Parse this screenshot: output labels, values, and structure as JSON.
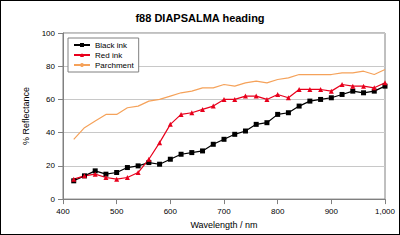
{
  "chart_data": {
    "type": "line",
    "title": "f88 DIAPSALMA heading",
    "x_label": "Wavelength / nm",
    "y_label": "% Reflectance",
    "x": [
      420,
      440,
      460,
      480,
      500,
      520,
      540,
      560,
      580,
      600,
      620,
      640,
      660,
      680,
      700,
      720,
      740,
      760,
      780,
      800,
      820,
      840,
      860,
      880,
      900,
      920,
      940,
      960,
      980,
      1000
    ],
    "series": [
      {
        "name": "Black ink",
        "color": "#000000",
        "marker": "square",
        "values": [
          11,
          14,
          17,
          15,
          16,
          19,
          20,
          22,
          21,
          24,
          27,
          28,
          29,
          33,
          36,
          39,
          41,
          45,
          46,
          51,
          52,
          56,
          59,
          60,
          61,
          63,
          65,
          64,
          65,
          68
        ]
      },
      {
        "name": "Red ink",
        "color": "#e8001c",
        "marker": "triangle",
        "values": [
          12,
          14,
          15,
          13,
          12,
          13,
          16,
          24,
          34,
          45,
          51,
          52,
          54,
          56,
          60,
          60,
          62,
          62,
          60,
          63,
          61,
          66,
          66,
          66,
          65,
          69,
          68,
          68,
          67,
          70
        ]
      },
      {
        "name": "Parchment",
        "color": "#f5a25a",
        "marker": "none",
        "values": [
          36,
          43,
          47,
          51,
          51,
          55,
          56,
          59,
          60,
          62,
          64,
          65,
          67,
          67,
          69,
          68,
          70,
          71,
          70,
          72,
          73,
          75,
          75,
          75,
          75,
          76,
          76,
          77,
          75,
          78
        ]
      }
    ],
    "xlim": [
      400,
      1000
    ],
    "xticks": [
      400,
      500,
      600,
      700,
      800,
      900,
      1000
    ],
    "ylim": [
      0,
      100
    ],
    "yticks": [
      0,
      20,
      40,
      60,
      80,
      100
    ],
    "grid": true,
    "legend": "upper left"
  }
}
